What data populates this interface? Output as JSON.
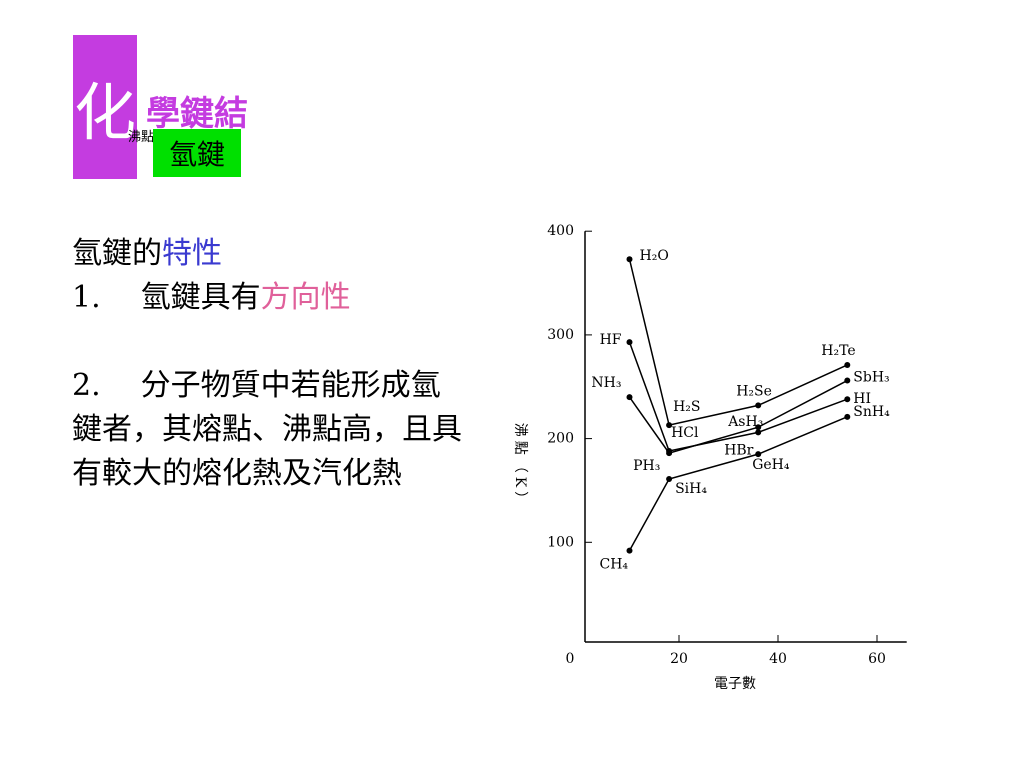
{
  "header": {
    "logo": "化",
    "title": "學鍵結",
    "overlay": "沸點",
    "subtitle": "氫鍵"
  },
  "body": {
    "heading": "氫鍵的",
    "heading_highlight": "特性",
    "point1_number": "1.",
    "point1": "氫鍵具有",
    "point1_highlight": "方向性",
    "point2_number": "2.",
    "point2": "分子物質中若能形成氫鍵者，其熔點、沸點高，且具有較大的熔化熱及汽化熱"
  },
  "chart_data": {
    "type": "line",
    "x_label": "電子數",
    "y_label": "沸點（K）",
    "xlim": [
      0,
      66
    ],
    "xticks": [
      0,
      20,
      40,
      60
    ],
    "ylim": [
      0,
      400
    ],
    "yticks": [
      100,
      200,
      300,
      400
    ],
    "x": [
      10,
      18,
      36,
      54
    ],
    "series": [
      {
        "color": "#000000",
        "values": [
          373,
          213,
          232,
          271
        ],
        "labels": [
          "H₂O",
          "H₂S",
          "H₂Se",
          "H₂Te"
        ]
      },
      {
        "color": "#000000",
        "values": [
          293,
          188,
          206,
          238
        ],
        "labels": [
          "HF",
          "HCl",
          "HBr",
          "HI"
        ]
      },
      {
        "color": "#000000",
        "values": [
          240,
          186,
          211,
          256
        ],
        "labels": [
          "NH₃",
          "PH₃",
          "AsH₃",
          "SbH₃"
        ]
      },
      {
        "color": "#000000",
        "values": [
          92,
          161,
          185,
          221
        ],
        "labels": [
          "CH₄",
          "SiH₄",
          "GeH₄",
          "SnH₄"
        ]
      }
    ]
  }
}
